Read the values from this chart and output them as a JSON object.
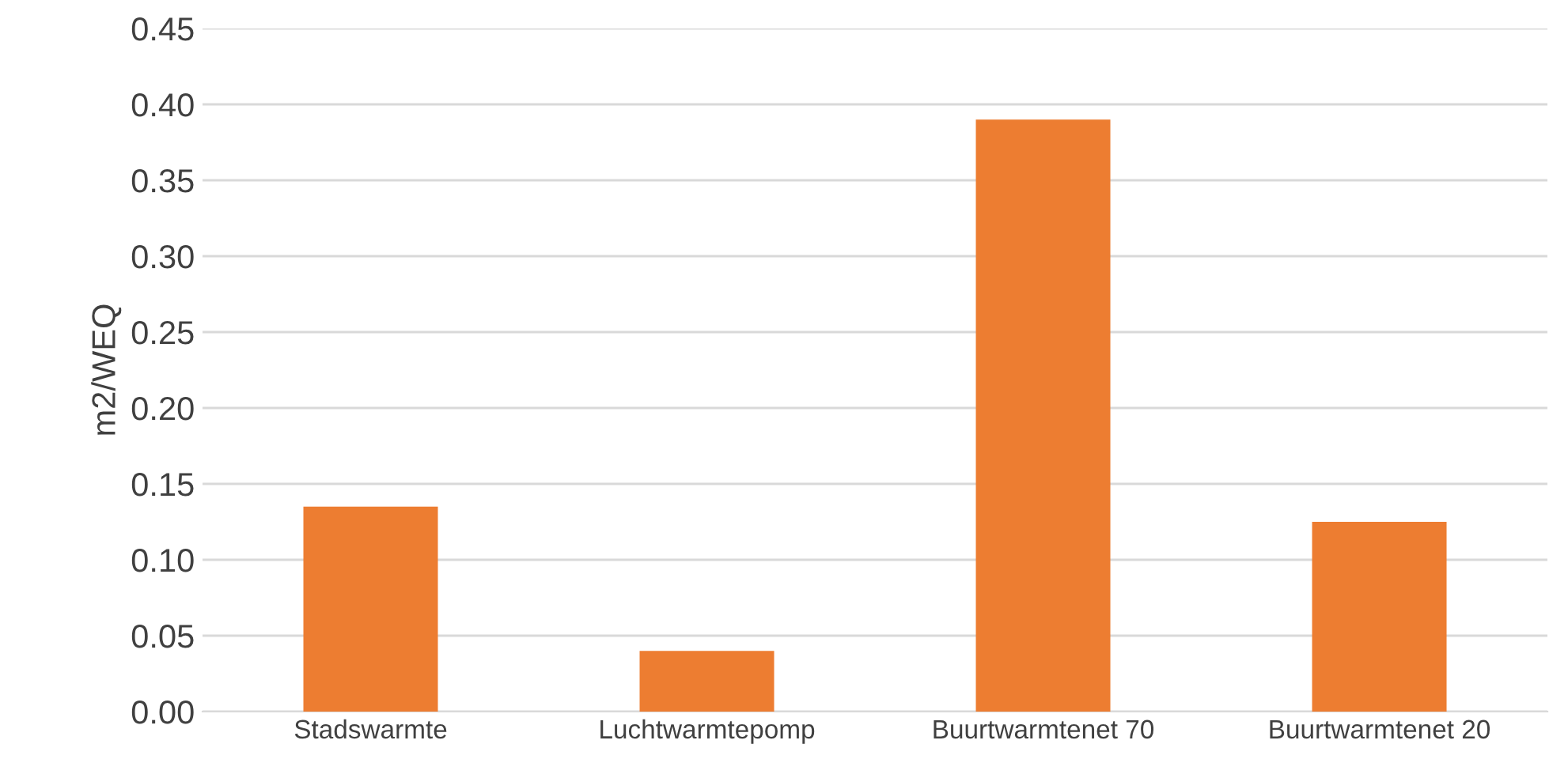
{
  "chart_data": {
    "type": "bar",
    "ylabel": "m2/WEQ",
    "categories": [
      "Stadswarmte",
      "Luchtwarmtepomp",
      "Buurtwarmtenet 70",
      "Buurtwarmtenet 20"
    ],
    "values": [
      0.135,
      0.04,
      0.39,
      0.125
    ],
    "color": "#ed7d31",
    "ylim": [
      0,
      0.45
    ],
    "yticks": [
      {
        "value": 0,
        "label": "0.00"
      },
      {
        "value": 0.05,
        "label": "0.05"
      },
      {
        "value": 0.1,
        "label": "0.10"
      },
      {
        "value": 0.15,
        "label": "0.15"
      },
      {
        "value": 0.2,
        "label": "0.20"
      },
      {
        "value": 0.25,
        "label": "0.25"
      },
      {
        "value": 0.3,
        "label": "0.30"
      },
      {
        "value": 0.35,
        "label": "0.35"
      },
      {
        "value": 0.4,
        "label": "0.40"
      },
      {
        "value": 0.45,
        "label": "0.45"
      }
    ],
    "grid": "y"
  }
}
